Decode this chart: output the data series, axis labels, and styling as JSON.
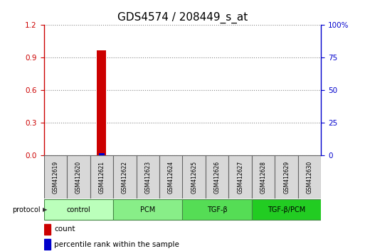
{
  "title": "GDS4574 / 208449_s_at",
  "samples": [
    "GSM412619",
    "GSM412620",
    "GSM412621",
    "GSM412622",
    "GSM412623",
    "GSM412624",
    "GSM412625",
    "GSM412626",
    "GSM412627",
    "GSM412628",
    "GSM412629",
    "GSM412630"
  ],
  "red_bar_index": 2,
  "red_bar_value": 0.97,
  "blue_bar_index": 2,
  "blue_bar_value": 0.02,
  "left_ylim": [
    0,
    1.2
  ],
  "left_yticks": [
    0,
    0.3,
    0.6,
    0.9,
    1.2
  ],
  "right_ylim": [
    0,
    100
  ],
  "right_yticks": [
    0,
    25,
    50,
    75,
    100
  ],
  "right_yticklabels": [
    "0",
    "25",
    "50",
    "75",
    "100%"
  ],
  "left_tick_color": "#cc0000",
  "right_tick_color": "#0000cc",
  "protocol_groups": [
    {
      "label": "control",
      "start": 0,
      "end": 3,
      "color": "#bbffbb"
    },
    {
      "label": "PCM",
      "start": 3,
      "end": 6,
      "color": "#88ee88"
    },
    {
      "label": "TGF-β",
      "start": 6,
      "end": 9,
      "color": "#55dd55"
    },
    {
      "label": "TGF-β/PCM",
      "start": 9,
      "end": 12,
      "color": "#22cc22"
    }
  ],
  "protocol_label": "protocol",
  "legend_count_color": "#cc0000",
  "legend_percentile_color": "#0000cc",
  "bar_width": 0.4,
  "grid_color": "#888888",
  "sample_box_color": "#d8d8d8",
  "background_color": "#ffffff",
  "title_fontsize": 11,
  "tick_label_fontsize": 7.5,
  "axis_label_fontsize": 8
}
